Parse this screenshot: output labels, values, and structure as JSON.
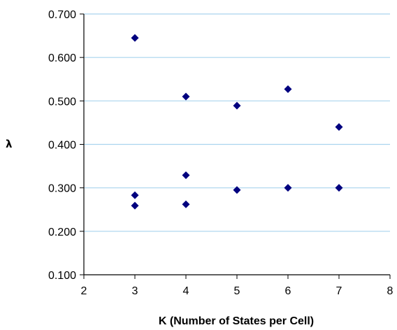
{
  "chart_data": {
    "type": "scatter",
    "title": "",
    "xlabel": "K (Number of States per Cell)",
    "ylabel": "λ",
    "xlim": [
      2,
      8
    ],
    "ylim": [
      0.1,
      0.7
    ],
    "x_ticks": [
      "2",
      "3",
      "4",
      "5",
      "6",
      "7",
      "8"
    ],
    "y_ticks": [
      "0.100",
      "0.200",
      "0.300",
      "0.400",
      "0.500",
      "0.600",
      "0.700"
    ],
    "grid": "horizontal",
    "legend": "none",
    "series": [
      {
        "marker": "diamond",
        "color": "#00007f",
        "points": [
          {
            "x": 3,
            "y": 0.645
          },
          {
            "x": 3,
            "y": 0.283
          },
          {
            "x": 3,
            "y": 0.259
          },
          {
            "x": 4,
            "y": 0.51
          },
          {
            "x": 4,
            "y": 0.329
          },
          {
            "x": 4,
            "y": 0.262
          },
          {
            "x": 5,
            "y": 0.489
          },
          {
            "x": 5,
            "y": 0.295
          },
          {
            "x": 6,
            "y": 0.527
          },
          {
            "x": 6,
            "y": 0.3
          },
          {
            "x": 7,
            "y": 0.44
          },
          {
            "x": 7,
            "y": 0.3
          }
        ]
      }
    ],
    "colors": {
      "gridline": "#a9d4ee",
      "axis": "#000000",
      "marker": "#00007f"
    }
  }
}
